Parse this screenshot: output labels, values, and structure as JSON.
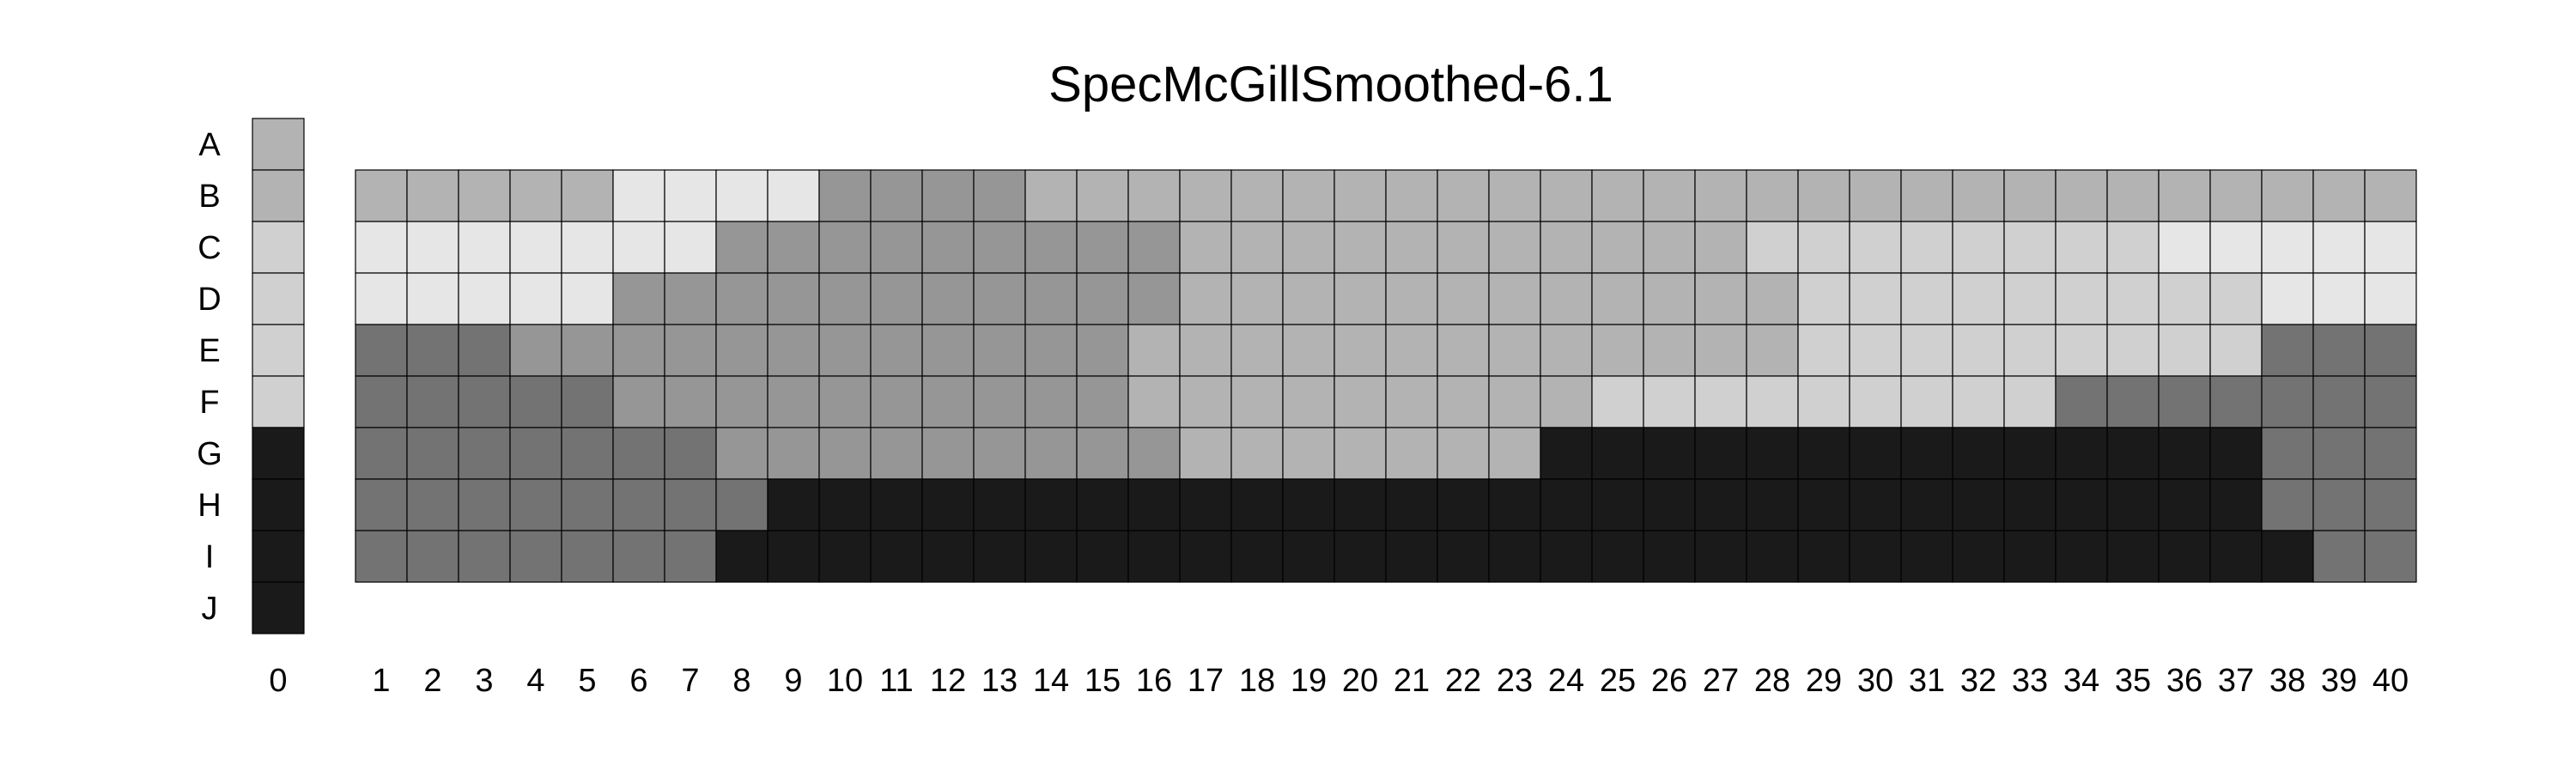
{
  "chart_data": {
    "type": "heatmap",
    "title": "SpecMcGillSmoothed-6.1",
    "row_labels": [
      "A",
      "B",
      "C",
      "D",
      "E",
      "F",
      "G",
      "H",
      "I",
      "J"
    ],
    "col_labels": [
      "0",
      "1",
      "2",
      "3",
      "4",
      "5",
      "6",
      "7",
      "8",
      "9",
      "10",
      "11",
      "12",
      "13",
      "14",
      "15",
      "16",
      "17",
      "18",
      "19",
      "20",
      "21",
      "22",
      "23",
      "24",
      "25",
      "26",
      "27",
      "28",
      "29",
      "30",
      "31",
      "32",
      "33",
      "34",
      "35",
      "36",
      "37",
      "38",
      "39",
      "40"
    ],
    "palette": [
      "#1a1a1a",
      "#737373",
      "#969696",
      "#b3b3b3",
      "#d0d0d0",
      "#e6e6e6"
    ],
    "reference_column": {
      "label": "0",
      "rows": [
        "A",
        "B",
        "C",
        "D",
        "E",
        "F",
        "G",
        "H",
        "I",
        "J"
      ],
      "levels": [
        3,
        3,
        4,
        4,
        4,
        4,
        0,
        0,
        0,
        0
      ]
    },
    "grid": {
      "rows": [
        "B",
        "C",
        "D",
        "E",
        "F",
        "G",
        "H",
        "I"
      ],
      "cols": [
        "1",
        "2",
        "3",
        "4",
        "5",
        "6",
        "7",
        "8",
        "9",
        "10",
        "11",
        "12",
        "13",
        "14",
        "15",
        "16",
        "17",
        "18",
        "19",
        "20",
        "21",
        "22",
        "23",
        "24",
        "25",
        "26",
        "27",
        "28",
        "29",
        "30",
        "31",
        "32",
        "33",
        "34",
        "35",
        "36",
        "37",
        "38",
        "39",
        "40"
      ],
      "levels": [
        [
          3,
          3,
          3,
          3,
          3,
          5,
          5,
          5,
          5,
          2,
          2,
          2,
          2,
          3,
          3,
          3,
          3,
          3,
          3,
          3,
          3,
          3,
          3,
          3,
          3,
          3,
          3,
          3,
          3,
          3,
          3,
          3,
          3,
          3,
          3,
          3,
          3,
          3,
          3,
          3
        ],
        [
          5,
          5,
          5,
          5,
          5,
          5,
          5,
          2,
          2,
          2,
          2,
          2,
          2,
          2,
          2,
          2,
          3,
          3,
          3,
          3,
          3,
          3,
          3,
          3,
          3,
          3,
          3,
          4,
          4,
          4,
          4,
          4,
          4,
          4,
          4,
          5,
          5,
          5,
          5,
          5
        ],
        [
          5,
          5,
          5,
          5,
          5,
          2,
          2,
          2,
          2,
          2,
          2,
          2,
          2,
          2,
          2,
          2,
          3,
          3,
          3,
          3,
          3,
          3,
          3,
          3,
          3,
          3,
          3,
          3,
          4,
          4,
          4,
          4,
          4,
          4,
          4,
          4,
          4,
          5,
          5,
          5
        ],
        [
          1,
          1,
          1,
          2,
          2,
          2,
          2,
          2,
          2,
          2,
          2,
          2,
          2,
          2,
          2,
          3,
          3,
          3,
          3,
          3,
          3,
          3,
          3,
          3,
          3,
          3,
          3,
          3,
          4,
          4,
          4,
          4,
          4,
          4,
          4,
          4,
          4,
          1,
          1,
          1
        ],
        [
          1,
          1,
          1,
          1,
          1,
          2,
          2,
          2,
          2,
          2,
          2,
          2,
          2,
          2,
          2,
          3,
          3,
          3,
          3,
          3,
          3,
          3,
          3,
          3,
          4,
          4,
          4,
          4,
          4,
          4,
          4,
          4,
          4,
          1,
          1,
          1,
          1,
          1,
          1,
          1
        ],
        [
          1,
          1,
          1,
          1,
          1,
          1,
          1,
          2,
          2,
          2,
          2,
          2,
          2,
          2,
          2,
          2,
          3,
          3,
          3,
          3,
          3,
          3,
          3,
          0,
          0,
          0,
          0,
          0,
          0,
          0,
          0,
          0,
          0,
          0,
          0,
          0,
          0,
          1,
          1,
          1
        ],
        [
          1,
          1,
          1,
          1,
          1,
          1,
          1,
          1,
          0,
          0,
          0,
          0,
          0,
          0,
          0,
          0,
          0,
          0,
          0,
          0,
          0,
          0,
          0,
          0,
          0,
          0,
          0,
          0,
          0,
          0,
          0,
          0,
          0,
          0,
          0,
          0,
          0,
          1,
          1,
          1
        ],
        [
          1,
          1,
          1,
          1,
          1,
          1,
          1,
          0,
          0,
          0,
          0,
          0,
          0,
          0,
          0,
          0,
          0,
          0,
          0,
          0,
          0,
          0,
          0,
          0,
          0,
          0,
          0,
          0,
          0,
          0,
          0,
          0,
          0,
          0,
          0,
          0,
          0,
          0,
          1,
          1
        ]
      ]
    },
    "legend": "none",
    "gridlines": true
  }
}
